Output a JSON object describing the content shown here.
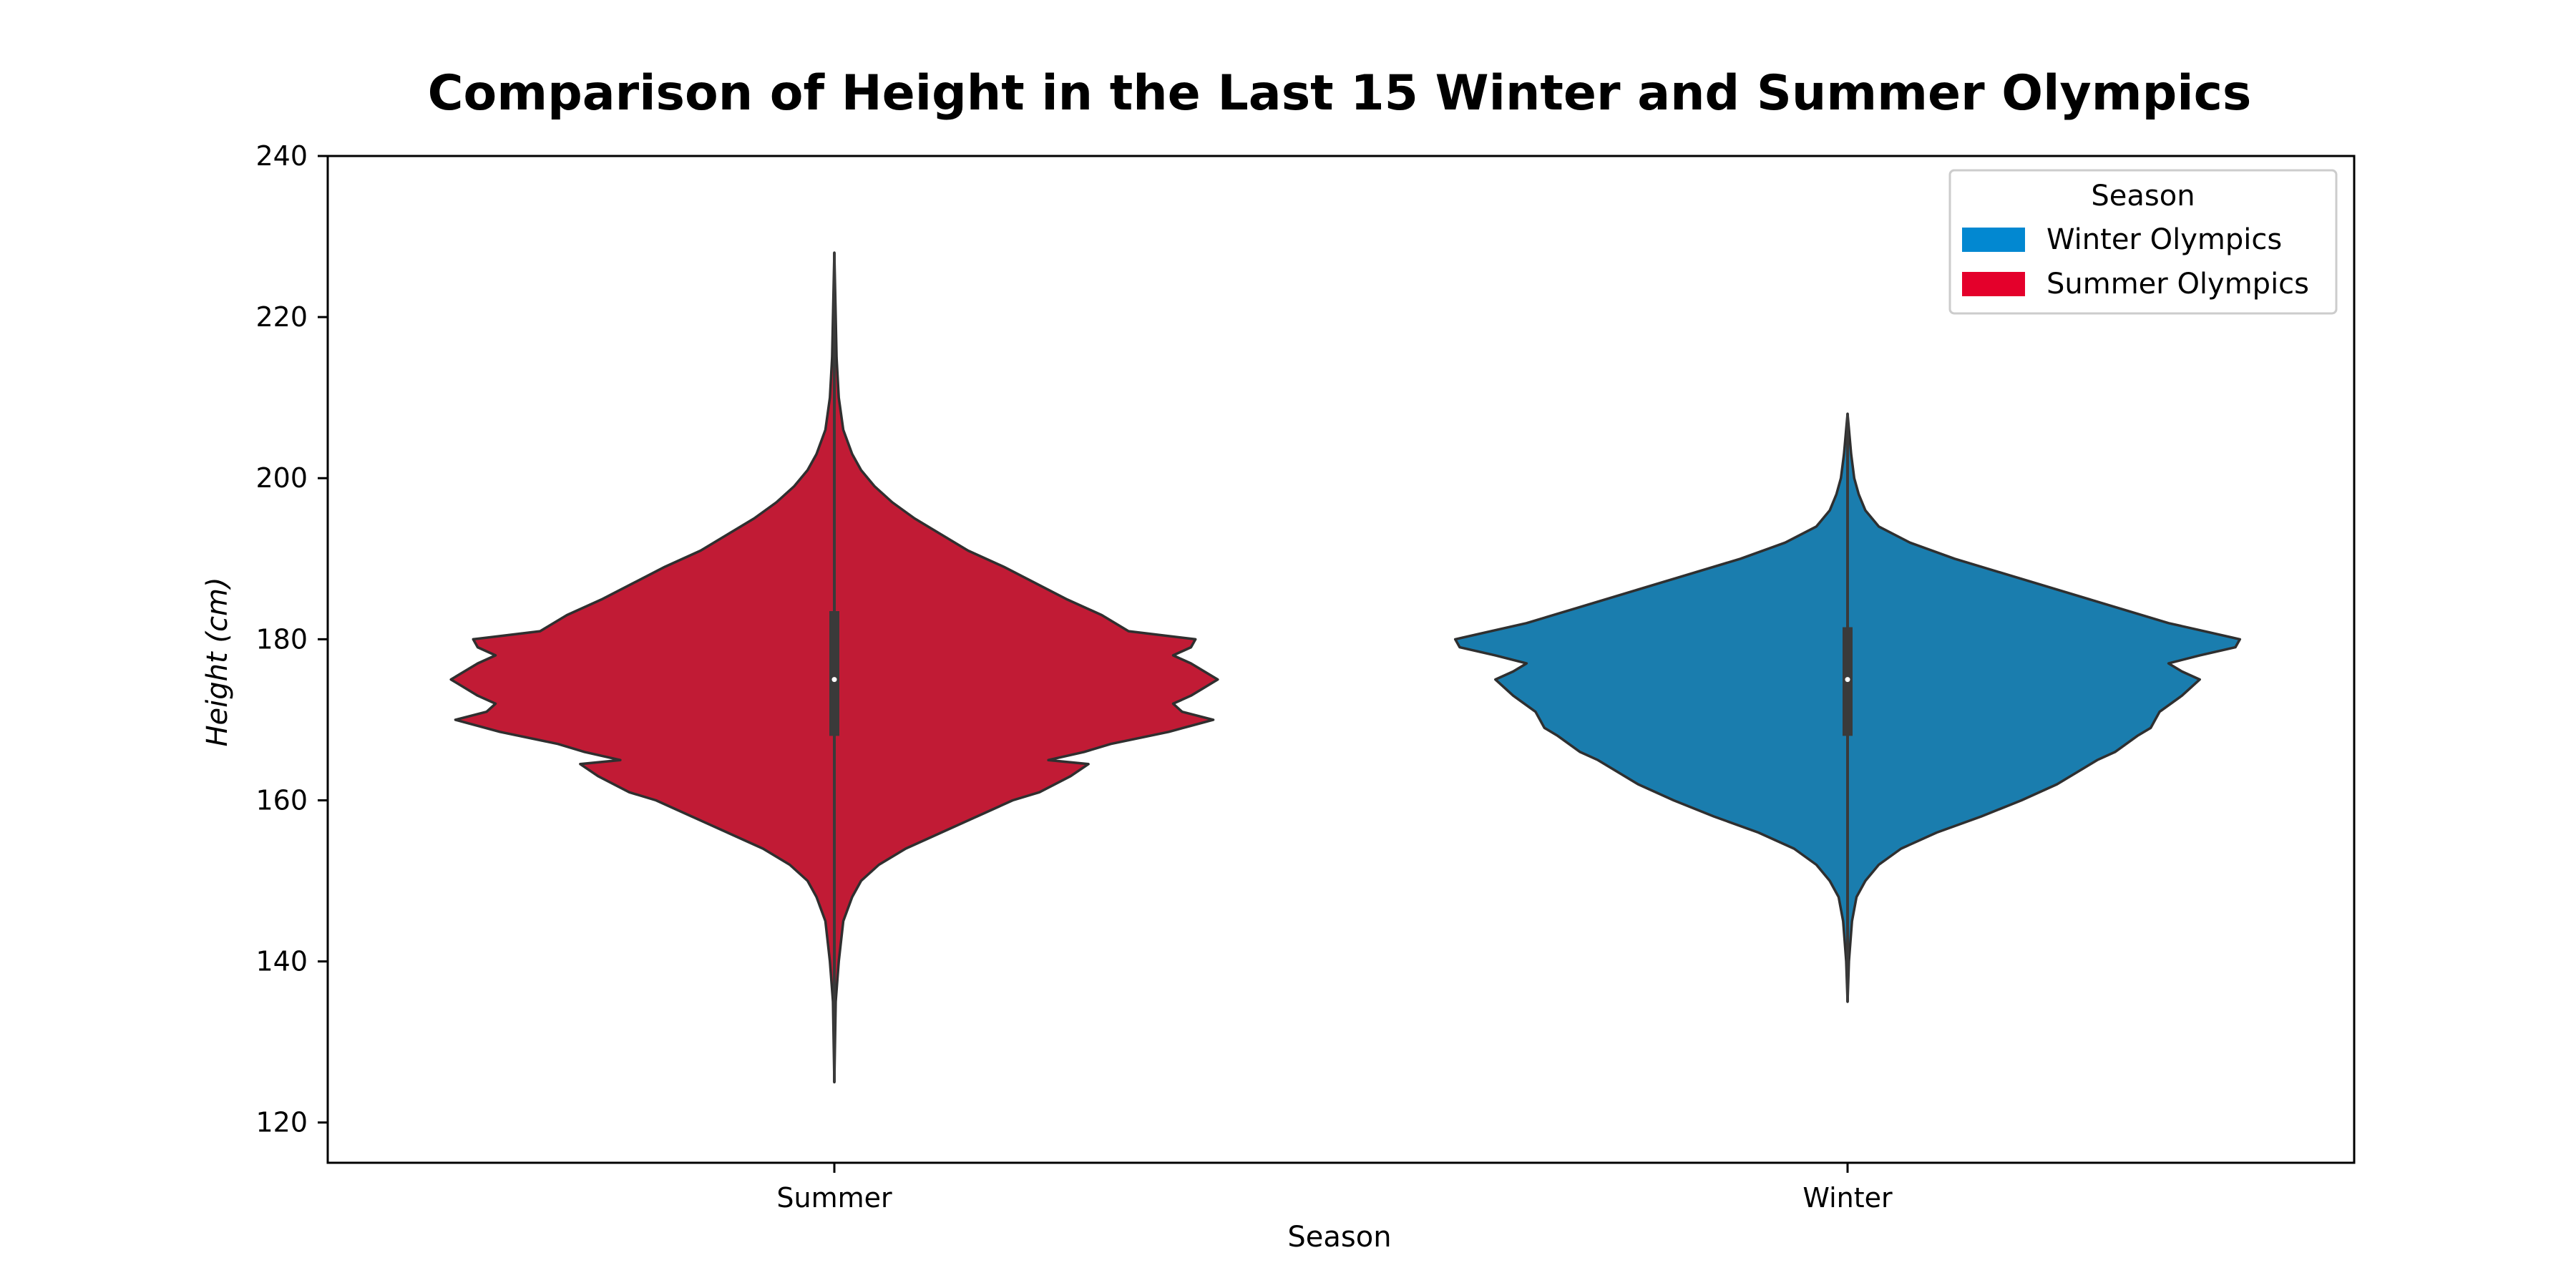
{
  "chart_data": {
    "type": "violin",
    "title": "Comparison of Height in the Last 15 Winter and Summer Olympics",
    "xlabel": "Season",
    "ylabel": "Height (cm)",
    "ylim": [
      115,
      240
    ],
    "yticks": [
      120,
      140,
      160,
      180,
      200,
      220,
      240
    ],
    "categories": [
      "Summer",
      "Winter"
    ],
    "legend": {
      "title": "Season",
      "placement": "top-right",
      "entries": [
        {
          "label": "Winter Olympics",
          "color": "#0288d1"
        },
        {
          "label": "Summer Olympics",
          "color": "#e4002b"
        }
      ]
    },
    "series": [
      {
        "category": "Summer",
        "color": "#c11b35",
        "min": 125,
        "max": 228,
        "q1": 168,
        "median": 175,
        "q3": 183.5,
        "profile": [
          [
            125,
            0.0
          ],
          [
            135,
            0.003
          ],
          [
            140,
            0.01
          ],
          [
            145,
            0.02
          ],
          [
            148,
            0.04
          ],
          [
            150,
            0.06
          ],
          [
            152,
            0.1
          ],
          [
            154,
            0.16
          ],
          [
            156,
            0.24
          ],
          [
            158,
            0.32
          ],
          [
            160,
            0.4
          ],
          [
            161,
            0.46
          ],
          [
            163,
            0.53
          ],
          [
            164.5,
            0.57
          ],
          [
            165,
            0.48
          ],
          [
            166,
            0.56
          ],
          [
            167,
            0.62
          ],
          [
            168.5,
            0.75
          ],
          [
            170,
            0.85
          ],
          [
            171,
            0.78
          ],
          [
            172,
            0.76
          ],
          [
            173,
            0.8
          ],
          [
            175,
            0.86
          ],
          [
            177,
            0.8
          ],
          [
            178,
            0.76
          ],
          [
            179,
            0.8
          ],
          [
            180,
            0.81
          ],
          [
            181,
            0.66
          ],
          [
            183,
            0.6
          ],
          [
            185,
            0.52
          ],
          [
            187,
            0.45
          ],
          [
            189,
            0.38
          ],
          [
            191,
            0.3
          ],
          [
            193,
            0.24
          ],
          [
            195,
            0.18
          ],
          [
            197,
            0.13
          ],
          [
            199,
            0.09
          ],
          [
            201,
            0.06
          ],
          [
            203,
            0.04
          ],
          [
            206,
            0.02
          ],
          [
            210,
            0.01
          ],
          [
            215,
            0.005
          ],
          [
            228,
            0.0
          ]
        ]
      },
      {
        "category": "Winter",
        "color": "#1a7dae",
        "min": 135,
        "max": 208,
        "q1": 168,
        "median": 175,
        "q3": 181.5,
        "profile": [
          [
            135,
            0.0
          ],
          [
            140,
            0.003
          ],
          [
            145,
            0.01
          ],
          [
            148,
            0.02
          ],
          [
            150,
            0.04
          ],
          [
            152,
            0.07
          ],
          [
            154,
            0.12
          ],
          [
            156,
            0.2
          ],
          [
            158,
            0.3
          ],
          [
            160,
            0.39
          ],
          [
            162,
            0.47
          ],
          [
            164,
            0.53
          ],
          [
            165,
            0.56
          ],
          [
            166,
            0.6
          ],
          [
            168,
            0.65
          ],
          [
            169,
            0.68
          ],
          [
            170,
            0.69
          ],
          [
            171,
            0.7
          ],
          [
            173,
            0.75
          ],
          [
            175,
            0.79
          ],
          [
            176,
            0.75
          ],
          [
            177,
            0.72
          ],
          [
            178,
            0.79
          ],
          [
            179,
            0.87
          ],
          [
            180,
            0.88
          ],
          [
            181,
            0.8
          ],
          [
            182,
            0.72
          ],
          [
            184,
            0.6
          ],
          [
            186,
            0.48
          ],
          [
            188,
            0.36
          ],
          [
            190,
            0.24
          ],
          [
            192,
            0.14
          ],
          [
            194,
            0.07
          ],
          [
            196,
            0.04
          ],
          [
            198,
            0.025
          ],
          [
            200,
            0.015
          ],
          [
            203,
            0.008
          ],
          [
            208,
            0.0
          ]
        ]
      }
    ]
  }
}
